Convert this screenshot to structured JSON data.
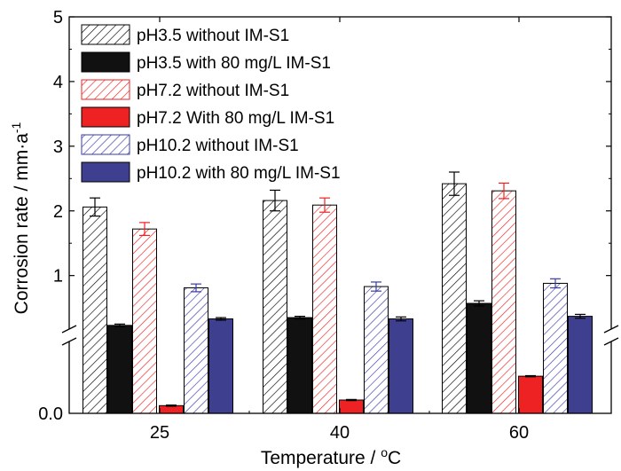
{
  "chart_data": {
    "type": "bar",
    "xlabel": "Temperature / °C",
    "xlabel_parts": {
      "main": "Temperature / ",
      "sup": "o",
      "unit": "C"
    },
    "ylabel": "Corrosion rate / mm·a⁻¹",
    "ylabel_parts": {
      "main": "Corrosion rate / mm·a",
      "sup": "-1"
    },
    "categories": [
      "25",
      "40",
      "60"
    ],
    "axis_break": true,
    "y_upper_range": [
      0.2,
      5
    ],
    "y_lower_range": [
      0,
      0.1
    ],
    "y_upper_ticks": [
      "1",
      "2",
      "3",
      "4",
      "5"
    ],
    "y_lower_ticks": [
      "0.0"
    ],
    "legend_position": "top-left",
    "series": [
      {
        "name": "pH3.5 without IM-S1",
        "color": "#000000",
        "hatched": true,
        "values": [
          2.06,
          2.16,
          2.42
        ],
        "errors": [
          0.14,
          0.16,
          0.18
        ]
      },
      {
        "name": "pH3.5 with 80 mg/L IM-S1",
        "color": "#111111",
        "hatched": false,
        "values": [
          0.23,
          0.35,
          0.57
        ],
        "errors": [
          0.02,
          0.02,
          0.04
        ]
      },
      {
        "name": "pH7.2 without IM-S1",
        "color": "#ee2222",
        "hatched": true,
        "values": [
          1.72,
          2.09,
          2.31
        ],
        "errors": [
          0.1,
          0.11,
          0.12
        ]
      },
      {
        "name": "pH7.2 With 80 mg/L IM-S1",
        "color": "#ee2222",
        "hatched": false,
        "values": [
          0.011,
          0.019,
          0.053
        ],
        "errors": [
          0.0008,
          0.0008,
          0.0008
        ]
      },
      {
        "name": "pH10.2 without IM-S1",
        "color": "#3a3aaa",
        "hatched": true,
        "values": [
          0.81,
          0.83,
          0.88
        ],
        "errors": [
          0.06,
          0.07,
          0.07
        ]
      },
      {
        "name": "pH10.2 with 80 mg/L IM-S1",
        "color": "#3f3f8f",
        "hatched": false,
        "values": [
          0.33,
          0.33,
          0.37
        ],
        "errors": [
          0.02,
          0.03,
          0.03
        ]
      }
    ]
  }
}
